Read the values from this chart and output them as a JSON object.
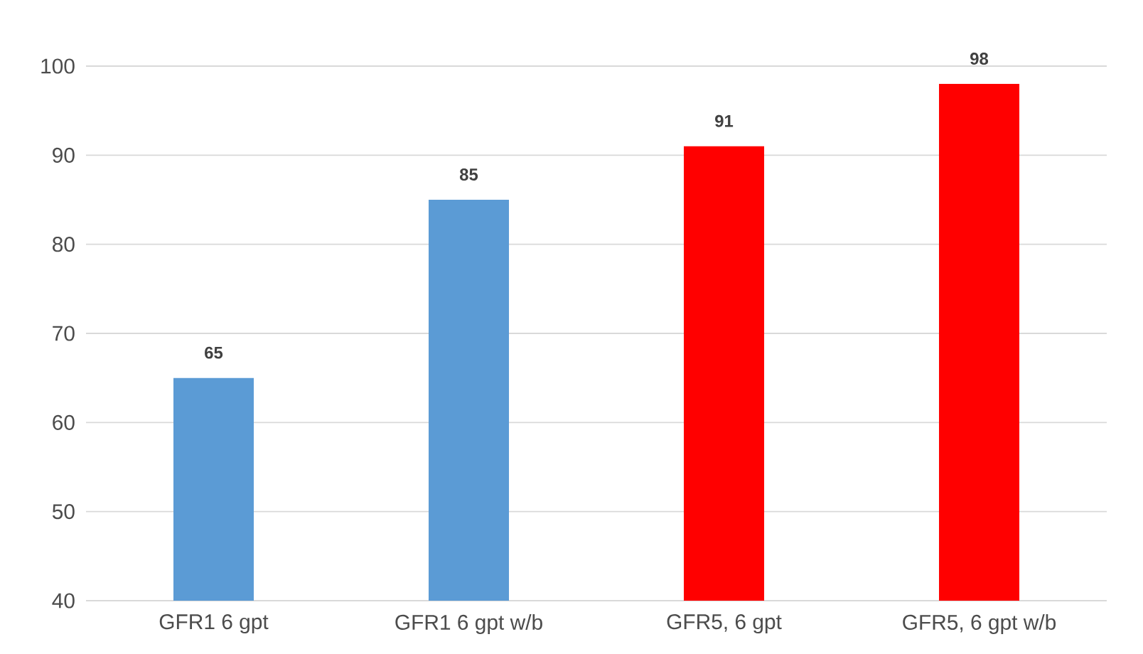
{
  "chart_data": {
    "type": "bar",
    "categories": [
      "GFR1 6 gpt",
      "GFR1 6 gpt w/b",
      "GFR5, 6 gpt",
      "GFR5, 6 gpt w/b"
    ],
    "values": [
      65,
      85,
      91,
      98
    ],
    "colors": [
      "#5b9bd5",
      "#5b9bd5",
      "#ff0000",
      "#ff0000"
    ],
    "ylim": [
      40,
      100
    ],
    "yticks": [
      40,
      50,
      60,
      70,
      80,
      90,
      100
    ],
    "grid": "y",
    "data_labels": true
  }
}
